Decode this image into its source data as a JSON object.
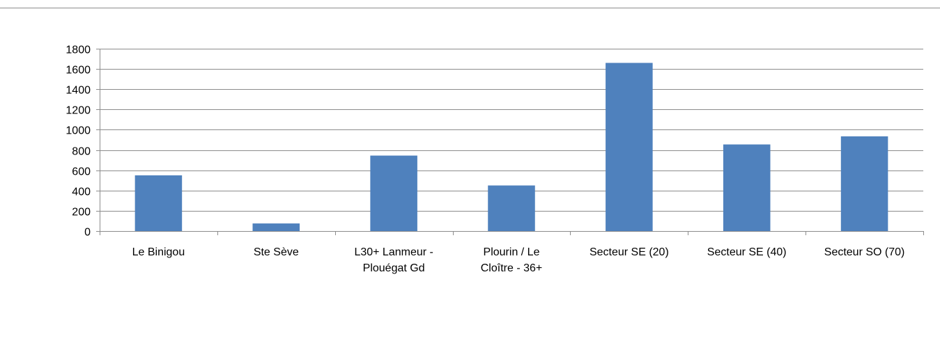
{
  "chart_data": {
    "type": "bar",
    "categories": [
      [
        "Le Binigou"
      ],
      [
        "Ste Sève"
      ],
      [
        "L30+ Lanmeur -",
        "Plouégat Gd"
      ],
      [
        "Plourin / Le",
        "Cloître - 36+"
      ],
      [
        "Secteur SE (20)"
      ],
      [
        "Secteur SE (40)"
      ],
      [
        "Secteur SO (70)"
      ]
    ],
    "values": [
      550,
      75,
      745,
      450,
      1660,
      855,
      935
    ],
    "ylim": [
      0,
      1800
    ],
    "yticks": [
      0,
      200,
      400,
      600,
      800,
      1000,
      1200,
      1400,
      1600,
      1800
    ],
    "grid": true,
    "legend": "none",
    "title": "",
    "xlabel": "",
    "ylabel": "",
    "colors": {
      "bar": "#4f81bd",
      "grid": "#8c8c8c",
      "axis": "#8c8c8c"
    }
  }
}
